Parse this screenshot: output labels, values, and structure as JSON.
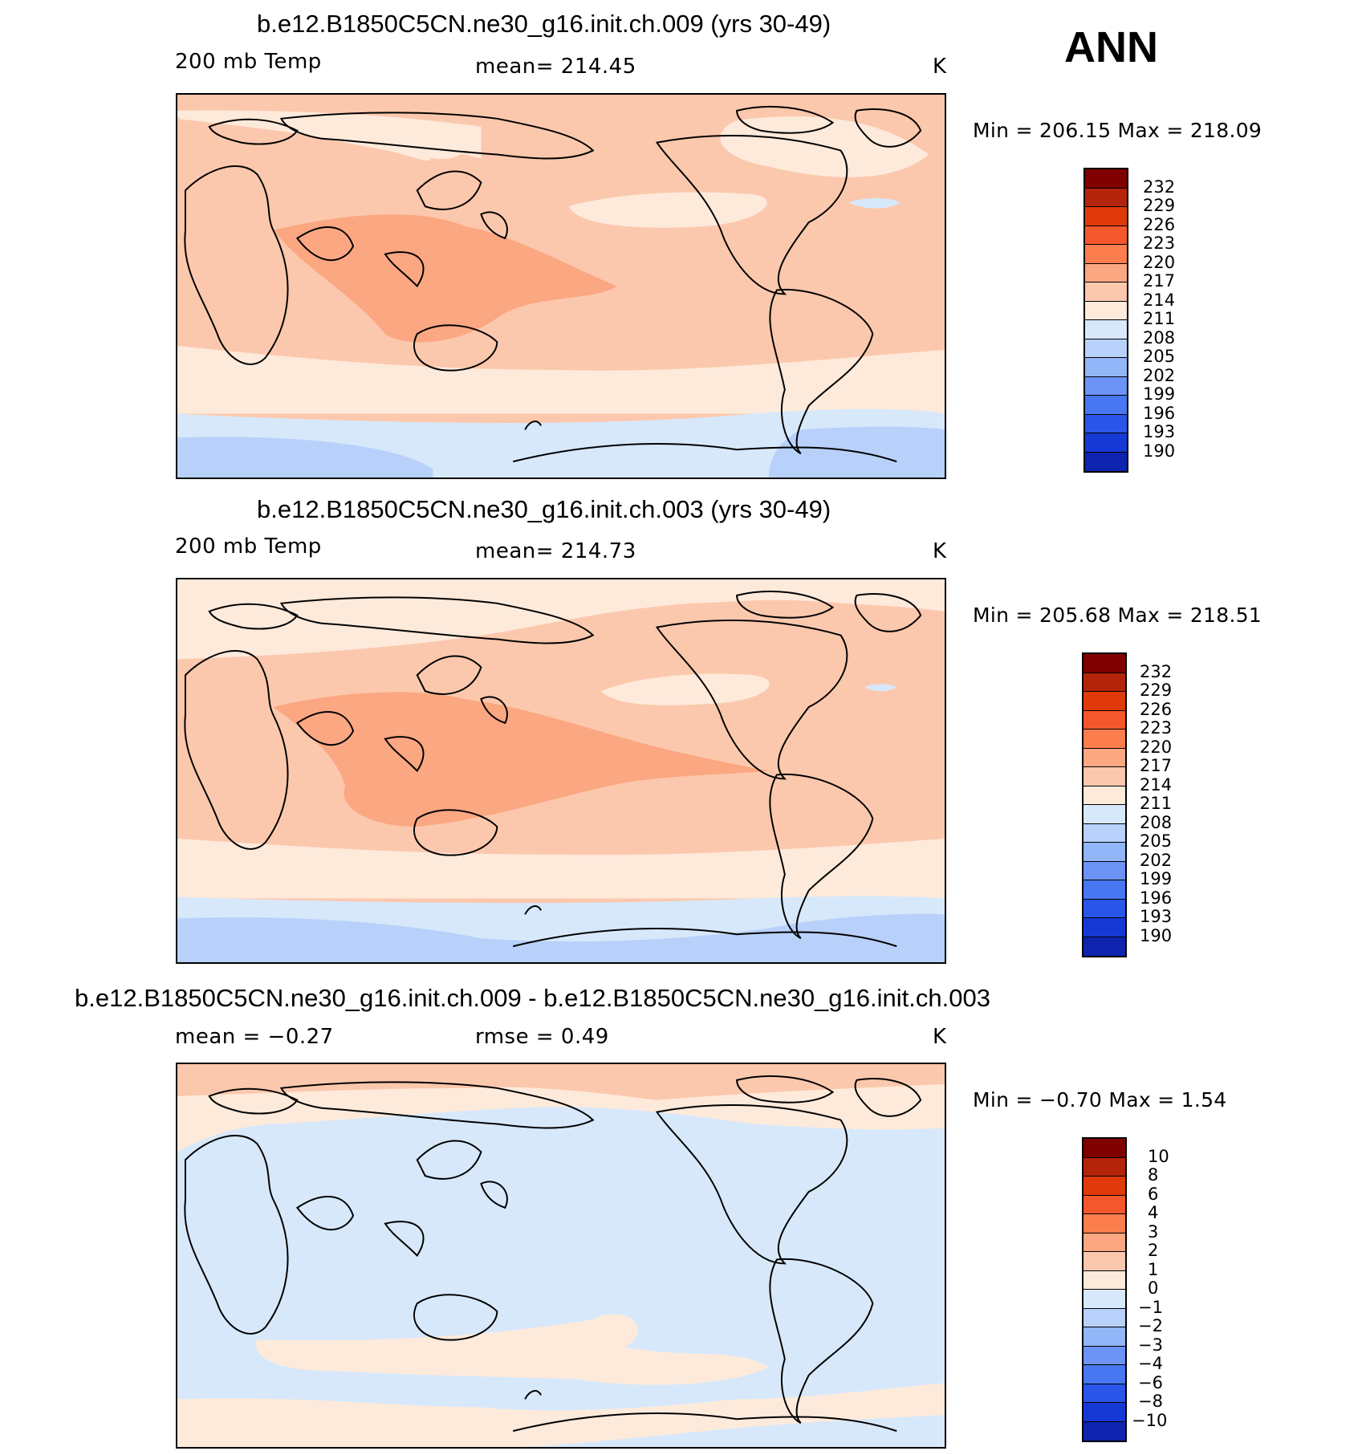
{
  "season": "ANN",
  "colors": {
    "abs_scale": [
      "#800000",
      "#b3240b",
      "#e03a0b",
      "#f4572b",
      "#fc7d4e",
      "#fba782",
      "#fcc8ad",
      "#feeadb",
      "#d7e8fb",
      "#b7d1fa",
      "#93b6f8",
      "#6c93f5",
      "#4976f1",
      "#2955e8",
      "#1639d6",
      "#0e23ae",
      "#00007f"
    ],
    "diff_scale": [
      "#800000",
      "#b3240b",
      "#e03a0b",
      "#f4572b",
      "#fc7d4e",
      "#fba782",
      "#fcc8ad",
      "#feeadb",
      "#d7e8fb",
      "#b7d1fa",
      "#93b6f8",
      "#6c93f5",
      "#4976f1",
      "#2955e8",
      "#1639d6",
      "#0e23ae",
      "#00007f"
    ]
  },
  "panels": [
    {
      "title": "b.e12.B1850C5CN.ne30_g16.init.ch.009 (yrs 30-49)",
      "left_label": "200 mb Temp",
      "center_label": "mean=  214.45",
      "units": "K",
      "minmax": "Min  =  206.15  Max  =  218.09",
      "colorbar_labels": [
        "232",
        "229",
        "226",
        "223",
        "220",
        "217",
        "214",
        "211",
        "208",
        "205",
        "202",
        "199",
        "196",
        "193",
        "190"
      ],
      "map_icon": "world-map-pacific-centered"
    },
    {
      "title": "b.e12.B1850C5CN.ne30_g16.init.ch.003 (yrs 30-49)",
      "left_label": "200 mb Temp",
      "center_label": "mean=  214.73",
      "units": "K",
      "minmax": "Min  =  205.68  Max  =  218.51",
      "colorbar_labels": [
        "232",
        "229",
        "226",
        "223",
        "220",
        "217",
        "214",
        "211",
        "208",
        "205",
        "202",
        "199",
        "196",
        "193",
        "190"
      ],
      "map_icon": "world-map-pacific-centered"
    },
    {
      "title": "b.e12.B1850C5CN.ne30_g16.init.ch.009 - b.e12.B1850C5CN.ne30_g16.init.ch.003",
      "left_label": "mean  =    −0.27",
      "center_label": "rmse  =     0.49",
      "units": "K",
      "minmax": "Min  =    −0.70  Max  =     1.54",
      "colorbar_labels": [
        "10",
        "8",
        "6",
        "4",
        "3",
        "2",
        "1",
        "0",
        "−1",
        "−2",
        "−3",
        "−4",
        "−6",
        "−8",
        "−10"
      ],
      "map_icon": "world-map-pacific-centered"
    }
  ],
  "chart_data": [
    {
      "type": "heatmap",
      "title": "b.e12.B1850C5CN.ne30_g16.init.ch.009 (yrs 30-49)",
      "variable": "200 mb Temp",
      "units": "K",
      "mean": 214.45,
      "min": 206.15,
      "max": 218.09,
      "contour_levels": [
        190,
        193,
        196,
        199,
        202,
        205,
        208,
        211,
        214,
        217,
        220,
        223,
        226,
        229,
        232
      ],
      "projection": "cylindrical equidistant, centered on 180"
    },
    {
      "type": "heatmap",
      "title": "b.e12.B1850C5CN.ne30_g16.init.ch.003 (yrs 30-49)",
      "variable": "200 mb Temp",
      "units": "K",
      "mean": 214.73,
      "min": 205.68,
      "max": 218.51,
      "contour_levels": [
        190,
        193,
        196,
        199,
        202,
        205,
        208,
        211,
        214,
        217,
        220,
        223,
        226,
        229,
        232
      ],
      "projection": "cylindrical equidistant, centered on 180"
    },
    {
      "type": "heatmap",
      "title": "b.e12.B1850C5CN.ne30_g16.init.ch.009 - b.e12.B1850C5CN.ne30_g16.init.ch.003",
      "variable": "difference",
      "units": "K",
      "mean": -0.27,
      "rmse": 0.49,
      "min": -0.7,
      "max": 1.54,
      "contour_levels": [
        -10,
        -8,
        -6,
        -4,
        -3,
        -2,
        -1,
        0,
        1,
        2,
        3,
        4,
        6,
        8,
        10
      ],
      "projection": "cylindrical equidistant, centered on 180"
    }
  ]
}
